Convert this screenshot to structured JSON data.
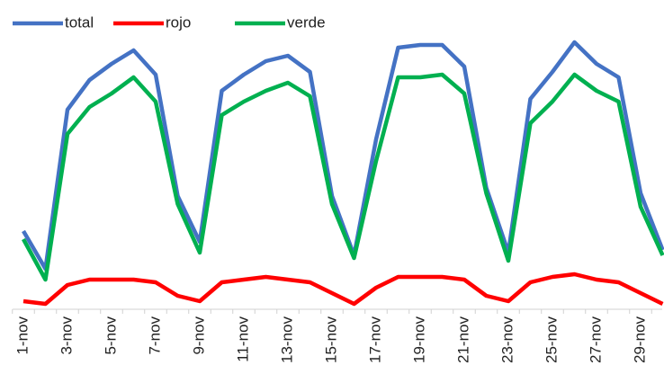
{
  "chart_data": {
    "type": "line",
    "categories": [
      "1-nov",
      null,
      "3-nov",
      null,
      "5-nov",
      null,
      "7-nov",
      null,
      "9-nov",
      null,
      "11-nov",
      null,
      "13-nov",
      null,
      "15-nov",
      null,
      "17-nov",
      null,
      "19-nov",
      null,
      "21-nov",
      null,
      "23-nov",
      null,
      "25-nov",
      null,
      "27-nov",
      null,
      "29-nov",
      null
    ],
    "series": [
      {
        "name": "total",
        "color": "#4472c4",
        "values": [
          29,
          15,
          74,
          85,
          91,
          96,
          87,
          42,
          25,
          81,
          87,
          92,
          94,
          88,
          42,
          20,
          63,
          97,
          98,
          98,
          90,
          45,
          21,
          78,
          88,
          99,
          91,
          86,
          43,
          22
        ]
      },
      {
        "name": "rojo",
        "color": "#ff0000",
        "values": [
          3,
          2,
          9,
          11,
          11,
          11,
          10,
          5,
          3,
          10,
          11,
          12,
          11,
          10,
          6,
          2,
          8,
          12,
          12,
          12,
          11,
          5,
          3,
          10,
          12,
          13,
          11,
          10,
          6,
          2
        ]
      },
      {
        "name": "verde",
        "color": "#00b050",
        "values": [
          26,
          11,
          65,
          75,
          80,
          86,
          77,
          39,
          21,
          72,
          77,
          81,
          84,
          79,
          39,
          19,
          55,
          86,
          86,
          87,
          80,
          43,
          18,
          69,
          77,
          87,
          81,
          77,
          38,
          20
        ]
      }
    ],
    "ylim": [
      0,
      100
    ],
    "legend": "top-left"
  }
}
